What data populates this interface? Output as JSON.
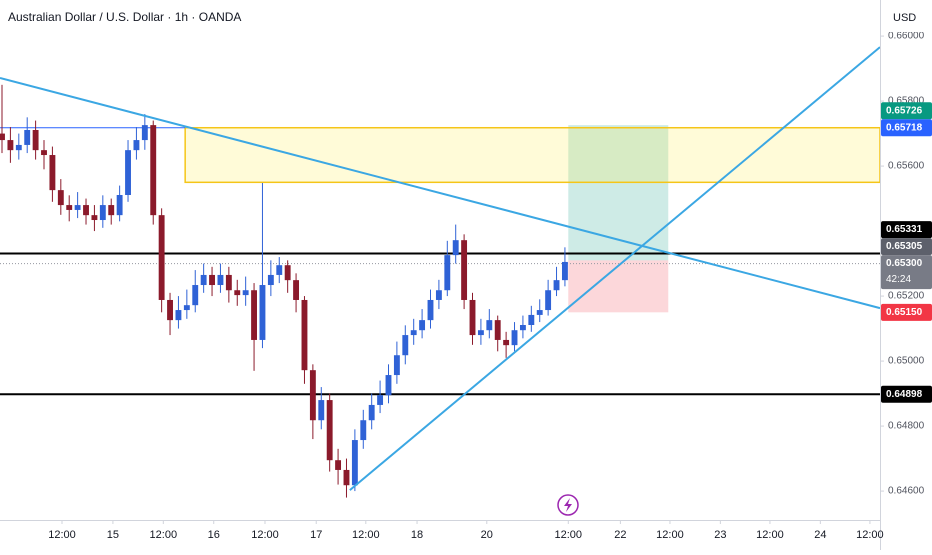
{
  "chart_data": {
    "type": "candlestick",
    "title": "Australian Dollar / U.S. Dollar · 1h · OANDA",
    "currency": "USD",
    "up_color": "#2f62d6",
    "down_color": "#8b1a2b",
    "xlim": [
      -0.238,
      104.5
    ],
    "xticks": [
      {
        "value": 7.14,
        "label": "12:00"
      },
      {
        "value": 13.2,
        "label": "15"
      },
      {
        "value": 19.2,
        "label": "12:00"
      },
      {
        "value": 25.2,
        "label": "16"
      },
      {
        "value": 31.3,
        "label": "12:00"
      },
      {
        "value": 37.4,
        "label": "17"
      },
      {
        "value": 43.3,
        "label": "12:00"
      },
      {
        "value": 49.4,
        "label": "18"
      },
      {
        "value": 57.7,
        "label": "20"
      },
      {
        "value": 67.4,
        "label": "12:00"
      },
      {
        "value": 73.6,
        "label": "22"
      },
      {
        "value": 79.5,
        "label": "12:00"
      },
      {
        "value": 85.5,
        "label": "23"
      },
      {
        "value": 91.4,
        "label": "12:00"
      },
      {
        "value": 97.4,
        "label": "24"
      },
      {
        "value": 103.3,
        "label": "12:00"
      }
    ],
    "ylim": [
      0.64511,
      0.66111
    ],
    "yticks": [
      {
        "value": 0.646,
        "label": "0.64600"
      },
      {
        "value": 0.648,
        "label": "0.64800"
      },
      {
        "value": 0.65,
        "label": "0.65000"
      },
      {
        "value": 0.652,
        "label": "0.65200"
      },
      {
        "value": 0.656,
        "label": "0.65600"
      },
      {
        "value": 0.658,
        "label": "0.65800"
      },
      {
        "value": 0.66,
        "label": "0.66000"
      }
    ],
    "open": [
      0.657,
      0.6568,
      0.65649,
      0.65665,
      0.65711,
      0.65649,
      0.65634,
      0.65526,
      0.6548,
      0.65465,
      0.6548,
      0.65449,
      0.65434,
      0.6548,
      0.65449,
      0.65511,
      0.65649,
      0.6568,
      0.65726,
      0.65449,
      0.65188,
      0.65126,
      0.65157,
      0.65172,
      0.65234,
      0.65265,
      0.65234,
      0.65265,
      0.65218,
      0.65203,
      0.65218,
      0.65065,
      0.65234,
      0.65265,
      0.65295,
      0.65249,
      0.65188,
      0.64972,
      0.64818,
      0.6488,
      0.64695,
      0.64665,
      0.64618,
      0.64757,
      0.64818,
      0.64865,
      0.64895,
      0.64957,
      0.65018,
      0.6508,
      0.65095,
      0.65126,
      0.65188,
      0.65218,
      0.65326,
      0.65372,
      0.65188,
      0.6508,
      0.65095,
      0.65126,
      0.65065,
      0.65049,
      0.65095,
      0.65111,
      0.65142,
      0.65157,
      0.65218,
      0.65249
    ],
    "high": [
      0.6585,
      0.6572,
      0.657,
      0.6575,
      0.6574,
      0.6568,
      0.6566,
      0.6556,
      0.6551,
      0.6552,
      0.655,
      0.6548,
      0.6551,
      0.655,
      0.6554,
      0.6568,
      0.6572,
      0.6576,
      0.6574,
      0.6547,
      0.6521,
      0.652,
      0.6522,
      0.6528,
      0.653,
      0.6529,
      0.653,
      0.6529,
      0.6525,
      0.6526,
      0.6524,
      0.65548,
      0.6531,
      0.6532,
      0.6531,
      0.6527,
      0.652,
      0.6499,
      0.6492,
      0.649,
      0.6473,
      0.647,
      0.6479,
      0.6485,
      0.649,
      0.6494,
      0.6499,
      0.6506,
      0.6511,
      0.6513,
      0.6516,
      0.6522,
      0.6525,
      0.6537,
      0.6542,
      0.6539,
      0.6521,
      0.6513,
      0.6516,
      0.6514,
      0.6509,
      0.6512,
      0.6514,
      0.6517,
      0.6519,
      0.6525,
      0.6529,
      0.6535
    ],
    "low": [
      0.6564,
      0.6561,
      0.6562,
      0.6564,
      0.6562,
      0.6559,
      0.6549,
      0.6545,
      0.6543,
      0.6544,
      0.6542,
      0.654,
      0.6541,
      0.6542,
      0.6543,
      0.6549,
      0.6562,
      0.6565,
      0.6542,
      0.6515,
      0.6508,
      0.651,
      0.6513,
      0.6515,
      0.6521,
      0.652,
      0.6521,
      0.6518,
      0.6517,
      0.6517,
      0.6497,
      0.6504,
      0.652,
      0.6524,
      0.6521,
      0.6515,
      0.6493,
      0.6476,
      0.6479,
      0.6466,
      0.6462,
      0.6458,
      0.646,
      0.6473,
      0.6479,
      0.6484,
      0.6487,
      0.6493,
      0.6499,
      0.6505,
      0.6507,
      0.651,
      0.6516,
      0.652,
      0.653,
      0.6516,
      0.6505,
      0.6505,
      0.6507,
      0.6503,
      0.6501,
      0.6503,
      0.6507,
      0.6509,
      0.6512,
      0.6514,
      0.652,
      0.6523
    ],
    "close": [
      0.6568,
      0.65649,
      0.65665,
      0.65711,
      0.65649,
      0.65634,
      0.65526,
      0.6548,
      0.65465,
      0.6548,
      0.65449,
      0.65434,
      0.6548,
      0.65449,
      0.65511,
      0.65649,
      0.6568,
      0.65726,
      0.65449,
      0.65188,
      0.65126,
      0.65157,
      0.65172,
      0.65234,
      0.65265,
      0.65234,
      0.65265,
      0.65218,
      0.65203,
      0.65218,
      0.65065,
      0.65234,
      0.65265,
      0.65295,
      0.65249,
      0.65188,
      0.64972,
      0.64818,
      0.6488,
      0.64695,
      0.64665,
      0.64618,
      0.64757,
      0.64818,
      0.64865,
      0.64895,
      0.64957,
      0.65018,
      0.6508,
      0.65095,
      0.65126,
      0.65188,
      0.65218,
      0.65326,
      0.65372,
      0.65188,
      0.6508,
      0.65095,
      0.65126,
      0.65065,
      0.65049,
      0.65095,
      0.65111,
      0.65142,
      0.65157,
      0.65218,
      0.65249,
      0.65305
    ],
    "zone": {
      "top": 0.65718,
      "bottom": 0.6555,
      "start": 21.8,
      "color": "#f5c518"
    },
    "ref_line": {
      "value": 0.65718,
      "end": 21.8,
      "color": "#2962ff"
    },
    "levels": [
      {
        "value": 0.65331,
        "color": "#000000"
      },
      {
        "value": 0.64898,
        "color": "#000000"
      }
    ],
    "current_line": {
      "value": 0.653,
      "color": "#9598a1"
    },
    "trendlines": [
      {
        "x": [
          -0.238,
          104.5
        ],
        "y": [
          0.65871,
          0.65163
        ],
        "color": "#3ba7e3"
      },
      {
        "x": [
          41.4,
          104.5
        ],
        "y": [
          0.64603,
          0.65966
        ],
        "color": "#3ba7e3"
      }
    ],
    "position": {
      "x": [
        67.4,
        79.3
      ],
      "target": 0.65726,
      "entry": 0.6531,
      "stop": 0.6515
    },
    "badges": [
      {
        "value": 0.65726,
        "color": "#089981"
      },
      {
        "value": 0.65718,
        "color": "#2962ff"
      },
      {
        "value": 0.65331,
        "color": "#000000"
      },
      {
        "value": 0.65305,
        "color": "#5d606b"
      },
      {
        "value": 0.653,
        "label": "0.65300",
        "sub": "42:24",
        "color": "#787b86"
      },
      {
        "value": 0.6515,
        "label": "0.65150",
        "color": "#f23645"
      },
      {
        "value": 0.64898,
        "color": "#000000"
      }
    ]
  }
}
